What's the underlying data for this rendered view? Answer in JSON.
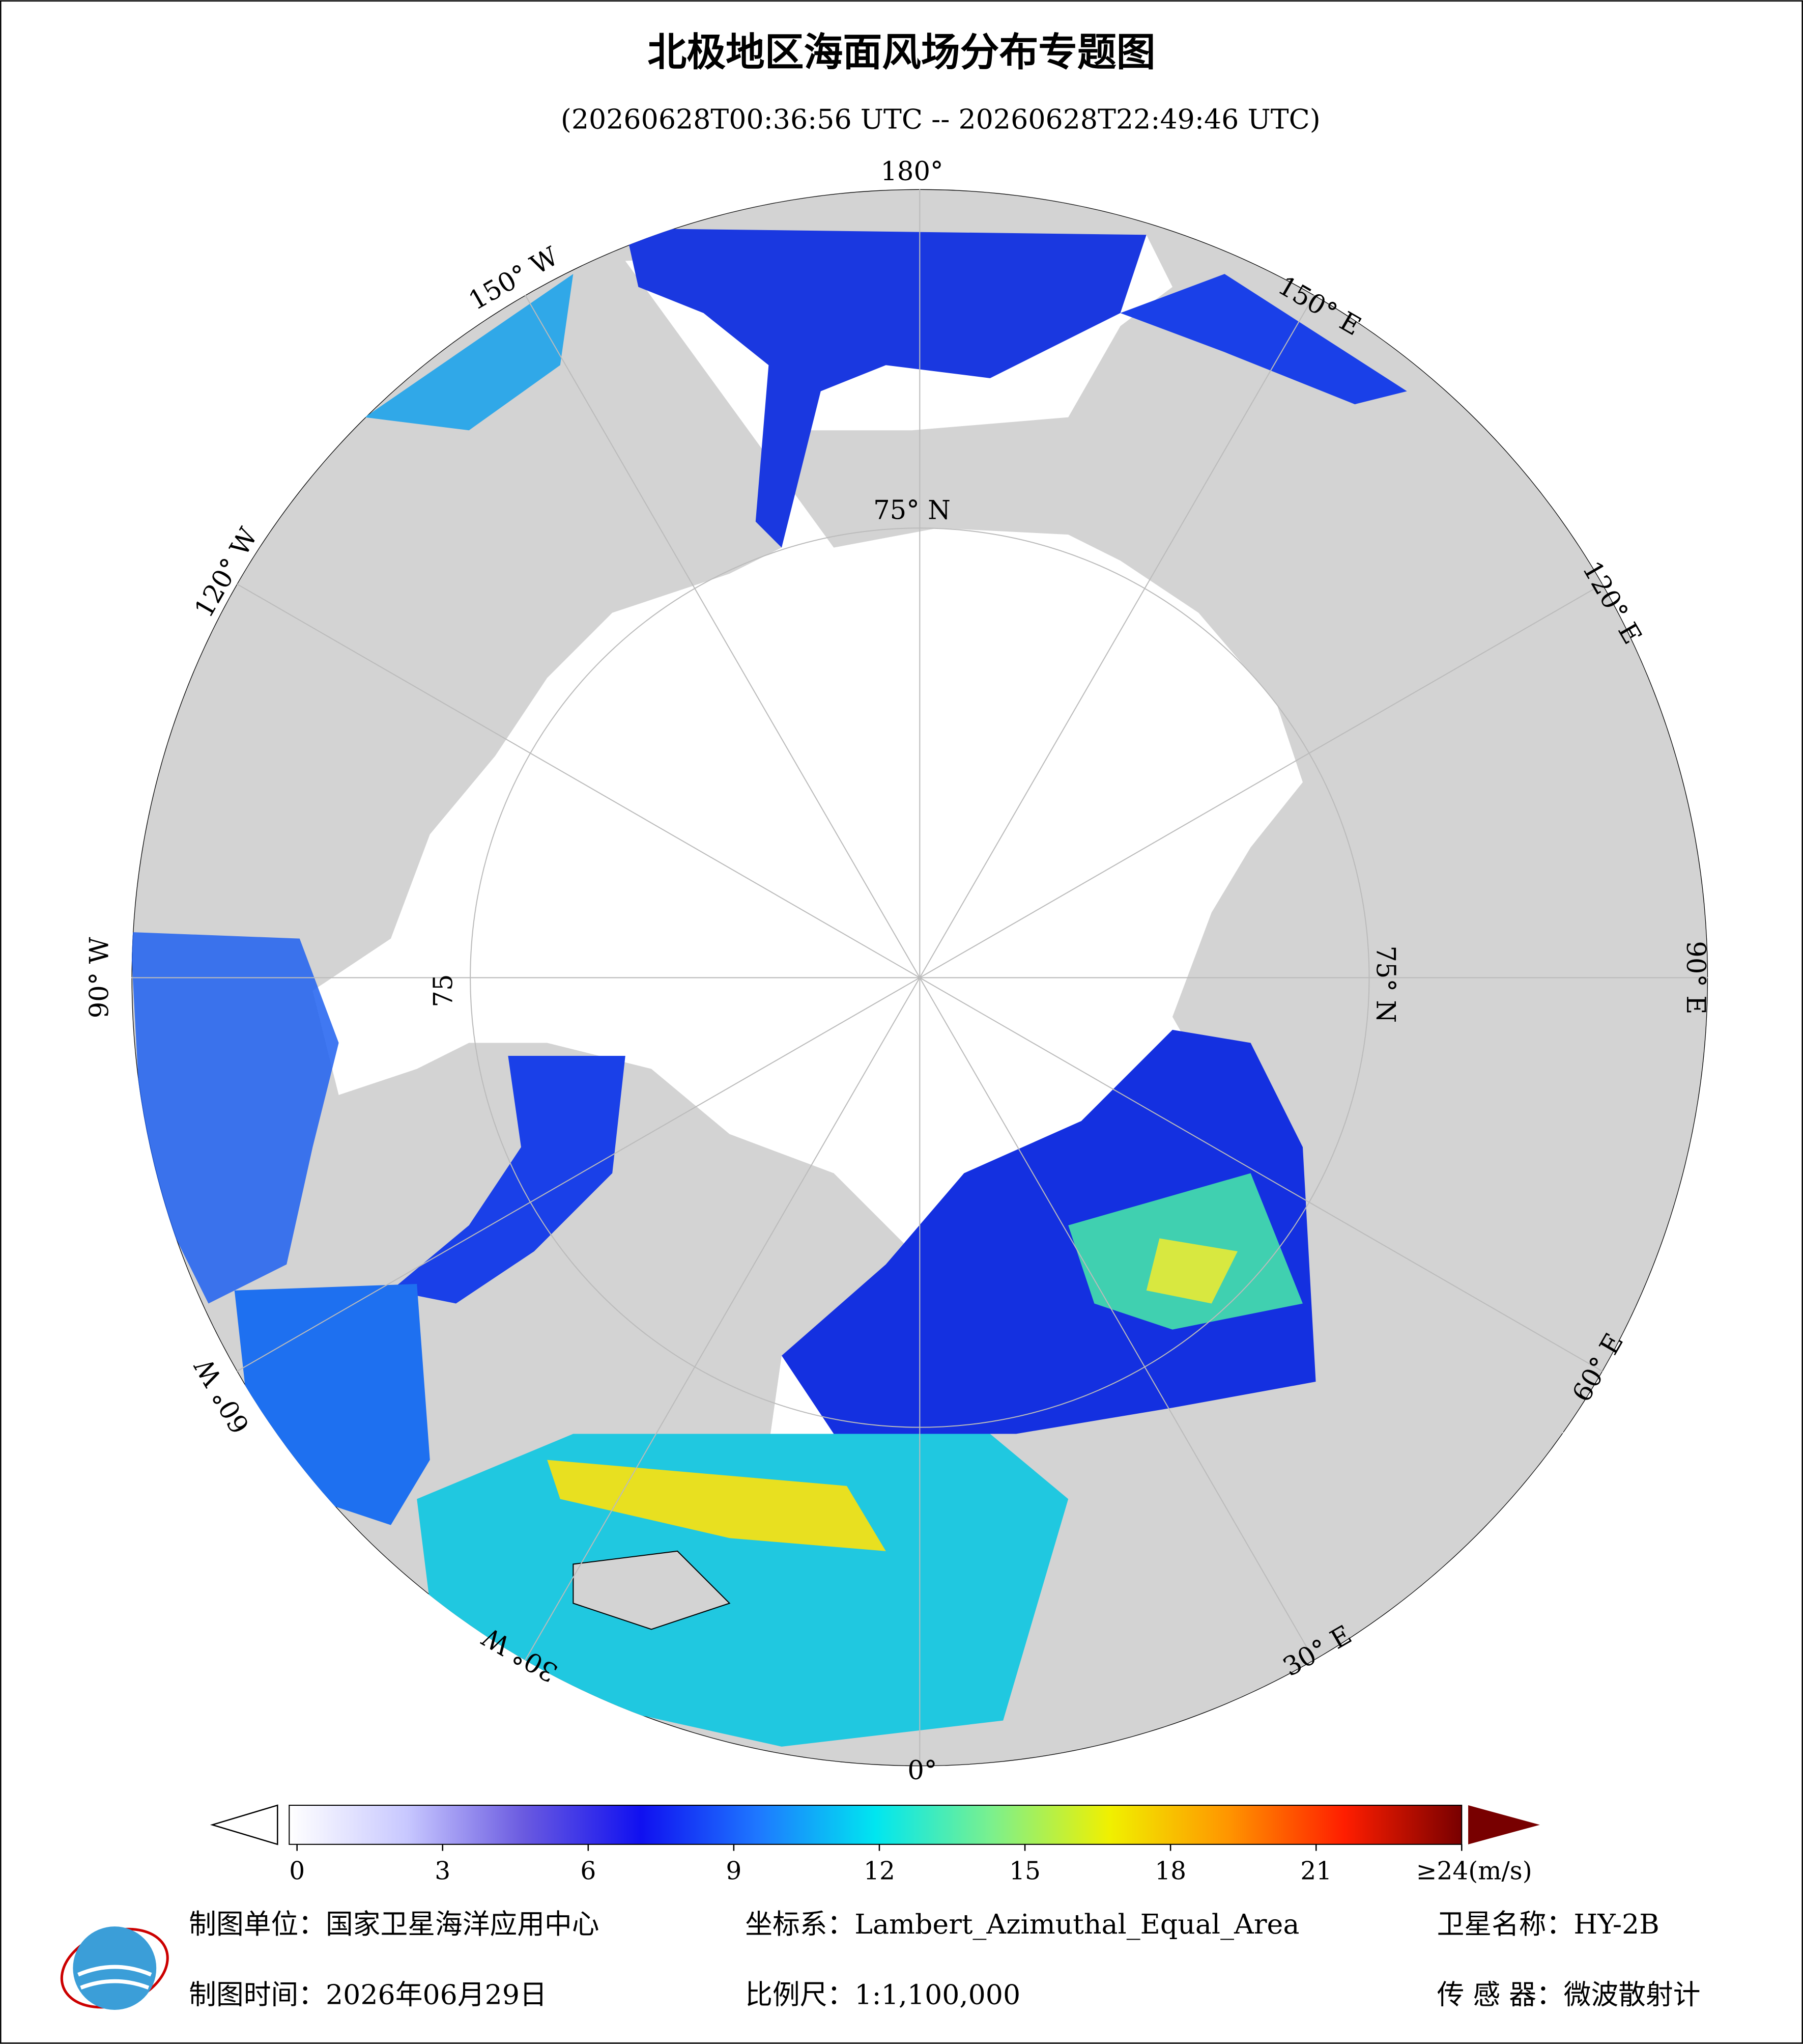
{
  "title": "北极地区海面风场分布专题图",
  "subtitle": "(20260628T00:36:56 UTC -- 20260628T22:49:46 UTC)",
  "graticule": {
    "lon_labels": [
      "180°",
      "150° E",
      "120° E",
      "90° E",
      "60° E",
      "30° E",
      "0°",
      "30° W",
      "60° W",
      "90° W",
      "120° W",
      "150° W"
    ],
    "lat_labels": [
      "75° N",
      "75° N",
      "75"
    ]
  },
  "colorbar": {
    "range": [
      0,
      24
    ],
    "ticks": [
      0,
      3,
      6,
      9,
      12,
      15,
      18,
      21,
      {
        "value": 24,
        "label": "≥24(m/s)"
      }
    ],
    "colors": [
      "#ffffff",
      "#c8c8ff",
      "#6a5ae0",
      "#1010f0",
      "#1e78ff",
      "#00e6f0",
      "#7cf08c",
      "#f0f000",
      "#ff9600",
      "#ff1e00",
      "#780000"
    ]
  },
  "footer": {
    "unit": "制图单位：国家卫星海洋应用中心",
    "crs": "坐标系：Lambert_Azimuthal_Equal_Area",
    "satellite": "卫星名称：HY-2B",
    "date": "制图时间：2026年06月29日",
    "scale": "比例尺：1:1,100,000",
    "sensor": "传 感 器：微波散射计"
  }
}
